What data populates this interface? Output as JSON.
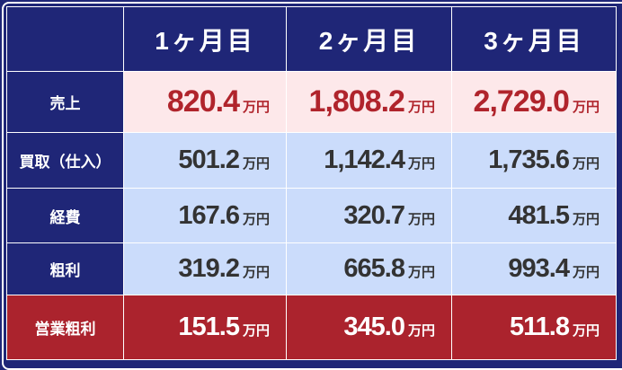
{
  "header": {
    "columns": [
      "1ヶ月目",
      "2ヶ月目",
      "3ヶ月目"
    ]
  },
  "rows": [
    {
      "label": "売上",
      "values": [
        "820.4",
        "1,808.2",
        "2,729.0"
      ]
    },
    {
      "label": "買取（仕入）",
      "values": [
        "501.2",
        "1,142.4",
        "1,735.6"
      ]
    },
    {
      "label": "経費",
      "values": [
        "167.6",
        "320.7",
        "481.5"
      ]
    },
    {
      "label": "粗利",
      "values": [
        "319.2",
        "665.8",
        "993.4"
      ]
    },
    {
      "label": "営業粗利",
      "values": [
        "151.5",
        "345.0",
        "511.8"
      ]
    }
  ],
  "unit": "万円",
  "colors": {
    "navy": "#1f2677",
    "sales_text": "#b0242c",
    "sales_bg": "#fde8ea",
    "row_bg": "#cbdcfb",
    "profit_bg": "#ab232d"
  }
}
